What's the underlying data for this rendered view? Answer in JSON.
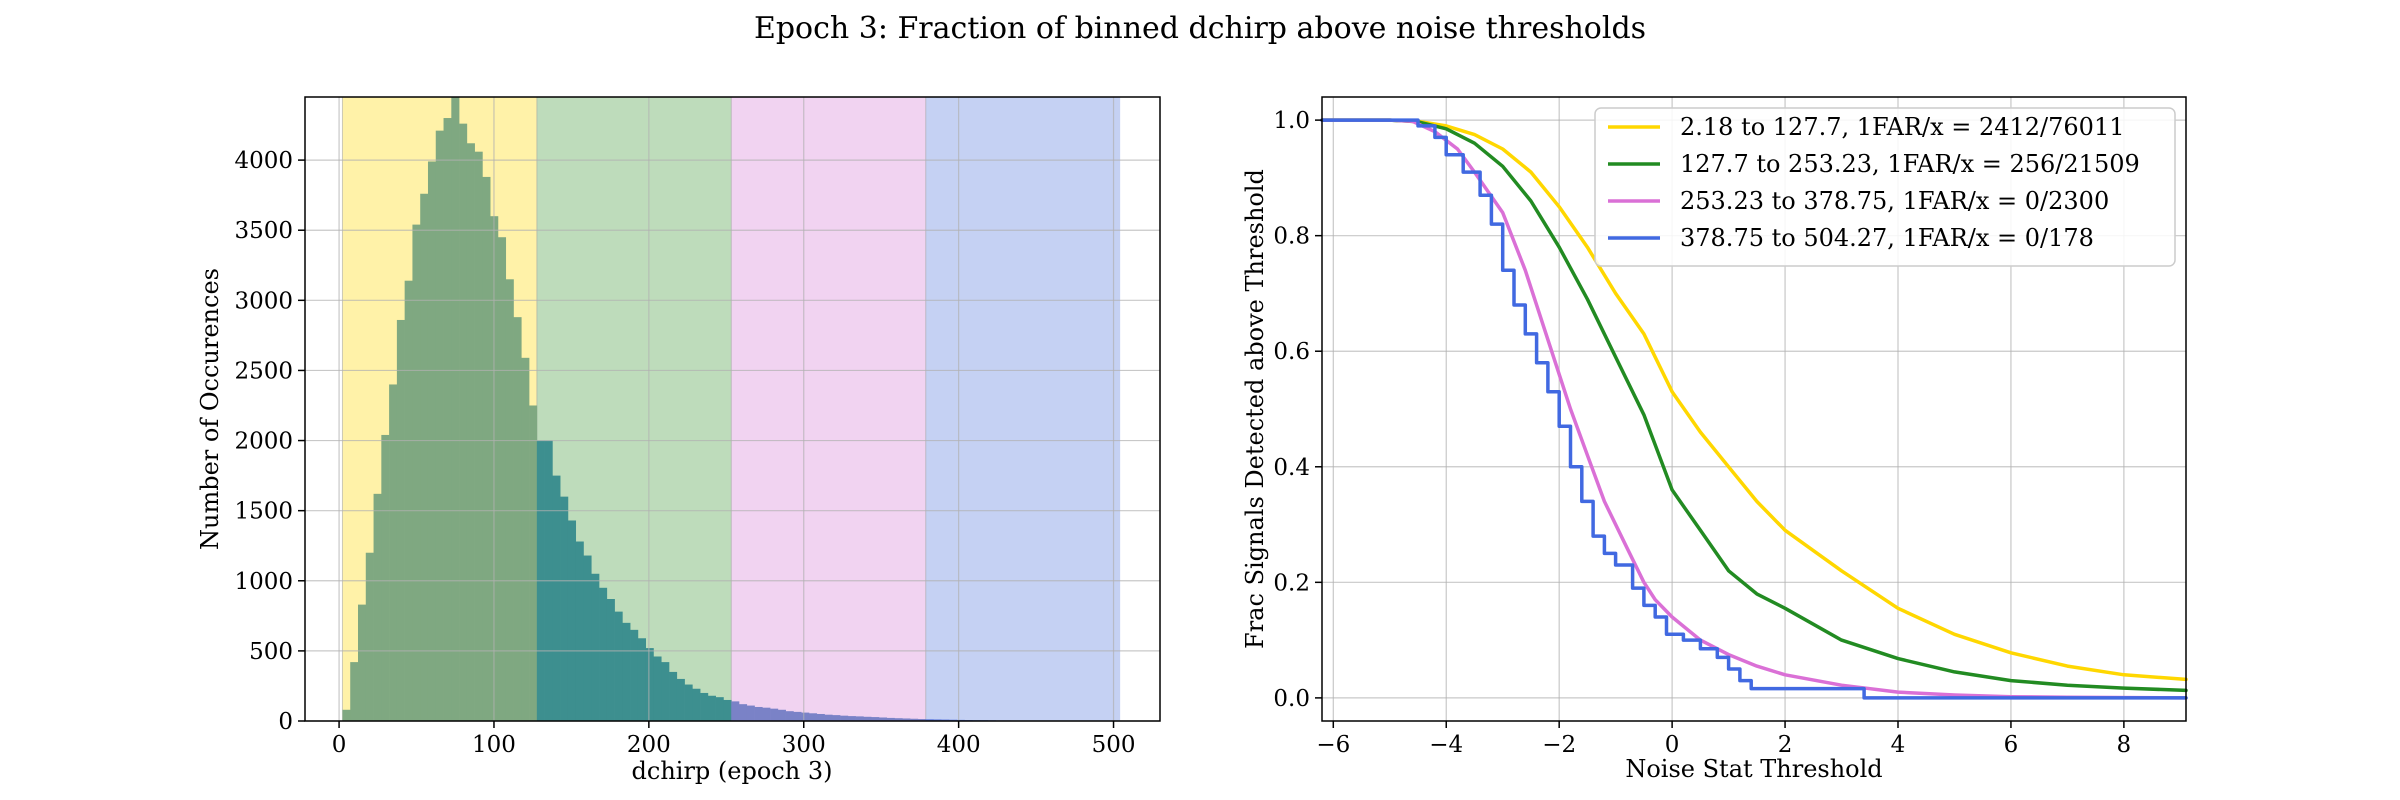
{
  "title": "Epoch 3: Fraction of binned dchirp above noise thresholds",
  "colors": {
    "yellow_band": "#fff2a8",
    "green_band": "#bedcbb",
    "pink_band": "#f1d3f1",
    "blue_band": "#c5d1f3",
    "hist_yellow": "#7fa881",
    "hist_green": "#3d8f8f",
    "hist_pink": "#7a82c7",
    "hist_blue": "#5473dc",
    "line_yellow": "#ffd700",
    "line_green": "#228b22",
    "line_pink": "#da70d6",
    "line_blue": "#4169e1",
    "grid": "#b0b0b0"
  },
  "chart_data": [
    {
      "type": "bar",
      "subtype": "histogram",
      "title": "",
      "xlabel": "dchirp (epoch 3)",
      "ylabel": "Number of Occurences",
      "xlim": [
        -22,
        530
      ],
      "ylim": [
        0,
        4450
      ],
      "grid": true,
      "xticks": [
        0,
        100,
        200,
        300,
        400,
        500
      ],
      "yticks": [
        0,
        500,
        1000,
        1500,
        2000,
        2500,
        3000,
        3500,
        4000
      ],
      "bands": [
        {
          "from": 2.18,
          "to": 127.7,
          "color": "yellow"
        },
        {
          "from": 127.7,
          "to": 253.23,
          "color": "green"
        },
        {
          "from": 253.23,
          "to": 378.75,
          "color": "pink"
        },
        {
          "from": 378.75,
          "to": 504.27,
          "color": "blue"
        }
      ],
      "bin_start": 2.18,
      "bin_width": 5.02,
      "counts": [
        80,
        420,
        830,
        1200,
        1620,
        2040,
        2400,
        2860,
        3140,
        3540,
        3760,
        3990,
        4210,
        4300,
        4450,
        4260,
        4120,
        4060,
        3880,
        3600,
        3450,
        3150,
        2880,
        2590,
        2250,
        2000,
        2000,
        1750,
        1600,
        1430,
        1280,
        1180,
        1050,
        950,
        870,
        780,
        700,
        650,
        590,
        520,
        460,
        420,
        350,
        300,
        260,
        230,
        200,
        180,
        170,
        150,
        140,
        120,
        110,
        100,
        95,
        88,
        80,
        70,
        65,
        60,
        55,
        50,
        45,
        42,
        38,
        35,
        33,
        30,
        28,
        25,
        22,
        20,
        18,
        16,
        14,
        12,
        11,
        10,
        9,
        8,
        7,
        6,
        6,
        5,
        4,
        4,
        3,
        3,
        2,
        2,
        2,
        1,
        1,
        1,
        1,
        1,
        1,
        1,
        1,
        1
      ]
    },
    {
      "type": "line",
      "title": "",
      "xlabel": "Noise Stat Threshold",
      "ylabel": "Frac Signals Detected above Threshold",
      "xlim": [
        -6.2,
        9.1
      ],
      "ylim": [
        -0.04,
        1.04
      ],
      "grid": true,
      "xticks": [
        -6,
        -4,
        -2,
        0,
        2,
        4,
        6,
        8
      ],
      "yticks": [
        0.0,
        0.2,
        0.4,
        0.6,
        0.8,
        1.0
      ],
      "tick_format": "%.1f",
      "legend": "top-right",
      "series": [
        {
          "name": "2.18 to 127.7, 1FAR/x = 2412/76011",
          "color": "yellow",
          "step": false,
          "points": [
            [
              -6.2,
              1.0
            ],
            [
              -5,
              1.0
            ],
            [
              -4.5,
              0.998
            ],
            [
              -4,
              0.99
            ],
            [
              -3.5,
              0.975
            ],
            [
              -3,
              0.95
            ],
            [
              -2.5,
              0.91
            ],
            [
              -2,
              0.85
            ],
            [
              -1.5,
              0.78
            ],
            [
              -1,
              0.7
            ],
            [
              -0.5,
              0.63
            ],
            [
              0,
              0.53
            ],
            [
              0.5,
              0.46
            ],
            [
              1,
              0.4
            ],
            [
              1.5,
              0.34
            ],
            [
              2,
              0.29
            ],
            [
              3,
              0.22
            ],
            [
              4,
              0.155
            ],
            [
              5,
              0.11
            ],
            [
              6,
              0.078
            ],
            [
              7,
              0.055
            ],
            [
              8,
              0.04
            ],
            [
              9.1,
              0.032
            ]
          ]
        },
        {
          "name": "127.7 to 253.23, 1FAR/x = 256/21509",
          "color": "green",
          "step": false,
          "points": [
            [
              -6.2,
              1.0
            ],
            [
              -5,
              1.0
            ],
            [
              -4.5,
              0.997
            ],
            [
              -4,
              0.985
            ],
            [
              -3.5,
              0.96
            ],
            [
              -3,
              0.92
            ],
            [
              -2.5,
              0.86
            ],
            [
              -2,
              0.78
            ],
            [
              -1.5,
              0.69
            ],
            [
              -1,
              0.59
            ],
            [
              -0.5,
              0.49
            ],
            [
              0,
              0.36
            ],
            [
              0.5,
              0.29
            ],
            [
              1,
              0.22
            ],
            [
              1.5,
              0.18
            ],
            [
              2,
              0.155
            ],
            [
              3,
              0.1
            ],
            [
              4,
              0.068
            ],
            [
              5,
              0.045
            ],
            [
              6,
              0.03
            ],
            [
              7,
              0.022
            ],
            [
              8,
              0.017
            ],
            [
              9.1,
              0.013
            ]
          ]
        },
        {
          "name": "253.23 to 378.75, 1FAR/x = 0/2300",
          "color": "pink",
          "step": false,
          "points": [
            [
              -6.2,
              1.0
            ],
            [
              -5,
              1.0
            ],
            [
              -4.6,
              0.998
            ],
            [
              -4.2,
              0.98
            ],
            [
              -3.8,
              0.95
            ],
            [
              -3.5,
              0.91
            ],
            [
              -3,
              0.84
            ],
            [
              -2.6,
              0.74
            ],
            [
              -2.2,
              0.62
            ],
            [
              -1.8,
              0.5
            ],
            [
              -1.5,
              0.42
            ],
            [
              -1.2,
              0.34
            ],
            [
              -0.8,
              0.26
            ],
            [
              -0.5,
              0.2
            ],
            [
              -0.3,
              0.17
            ],
            [
              0,
              0.14
            ],
            [
              0.5,
              0.1
            ],
            [
              1,
              0.075
            ],
            [
              1.5,
              0.055
            ],
            [
              2,
              0.04
            ],
            [
              3,
              0.022
            ],
            [
              4,
              0.01
            ],
            [
              5,
              0.005
            ],
            [
              6,
              0.002
            ],
            [
              7,
              0.001
            ],
            [
              9.1,
              0.0
            ]
          ]
        },
        {
          "name": "378.75 to 504.27, 1FAR/x = 0/178",
          "color": "blue",
          "step": true,
          "points": [
            [
              -6.2,
              1.0
            ],
            [
              -4.8,
              1.0
            ],
            [
              -4.5,
              0.99
            ],
            [
              -4.2,
              0.97
            ],
            [
              -4,
              0.94
            ],
            [
              -3.7,
              0.91
            ],
            [
              -3.4,
              0.87
            ],
            [
              -3.2,
              0.82
            ],
            [
              -3,
              0.74
            ],
            [
              -2.8,
              0.68
            ],
            [
              -2.6,
              0.63
            ],
            [
              -2.4,
              0.58
            ],
            [
              -2.2,
              0.53
            ],
            [
              -2,
              0.47
            ],
            [
              -1.8,
              0.4
            ],
            [
              -1.6,
              0.34
            ],
            [
              -1.4,
              0.28
            ],
            [
              -1.2,
              0.25
            ],
            [
              -1,
              0.23
            ],
            [
              -0.7,
              0.19
            ],
            [
              -0.5,
              0.16
            ],
            [
              -0.3,
              0.14
            ],
            [
              -0.1,
              0.11
            ],
            [
              0.2,
              0.1
            ],
            [
              0.5,
              0.085
            ],
            [
              0.8,
              0.07
            ],
            [
              1,
              0.05
            ],
            [
              1.2,
              0.03
            ],
            [
              1.4,
              0.016
            ],
            [
              2,
              0.016
            ],
            [
              3.2,
              0.016
            ],
            [
              3.4,
              0.0
            ],
            [
              9.1,
              0.0
            ]
          ]
        }
      ]
    }
  ]
}
